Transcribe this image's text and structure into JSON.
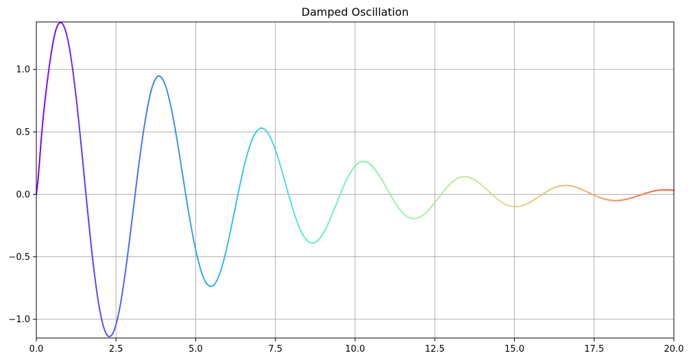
{
  "chart_data": {
    "type": "line",
    "title": "Damped Oscillation",
    "xlabel": "",
    "ylabel": "",
    "xlim": [
      0,
      20
    ],
    "ylim": [
      -1.15,
      1.38
    ],
    "grid": true,
    "colormap": "rainbow",
    "colors": [
      "#7f00ff",
      "#4a6cf0",
      "#2ab8e8",
      "#5ff0cc",
      "#9cf5a8",
      "#d8e08e",
      "#f6b074",
      "#ff5a38"
    ],
    "x_ticks": [
      0.0,
      2.5,
      5.0,
      7.5,
      10.0,
      12.5,
      15.0,
      17.5,
      20.0
    ],
    "x_tick_labels": [
      "0.0",
      "2.5",
      "5.0",
      "7.5",
      "10.0",
      "12.5",
      "15.0",
      "17.5",
      "20.0"
    ],
    "y_ticks": [
      -1.0,
      -0.5,
      0.0,
      0.5,
      1.0
    ],
    "y_tick_labels": [
      "−1.0",
      "−0.5",
      "0.0",
      "0.5",
      "1.0"
    ],
    "series": [
      {
        "x": [
          0,
          0.2,
          0.4,
          0.6,
          0.8,
          1.0,
          1.2,
          1.4,
          1.6,
          1.8,
          2.0,
          2.2,
          2.4,
          2.6,
          2.8,
          3.0,
          3.2,
          3.4,
          3.6,
          3.8,
          4.0,
          4.2,
          4.4,
          4.6,
          4.8,
          5.0,
          5.2,
          5.4,
          5.6,
          5.8,
          6.0,
          6.2,
          6.4,
          6.6,
          6.8,
          7.0,
          7.2,
          7.4,
          7.6,
          7.8,
          8.0,
          8.2,
          8.4,
          8.6,
          8.8,
          9.0,
          9.2,
          9.4,
          9.6,
          9.8,
          10.0,
          10.2,
          10.4,
          10.6,
          10.8,
          11.0,
          11.2,
          11.4,
          11.6,
          11.8,
          12.0,
          12.2,
          12.4,
          12.6,
          12.8,
          13.0,
          13.2,
          13.4,
          13.6,
          13.8,
          14.0,
          14.2,
          14.4,
          14.6,
          14.8,
          15.0,
          15.2,
          15.4,
          15.6,
          15.8,
          16.0,
          16.2,
          16.4,
          16.6,
          16.8,
          17.0,
          17.2,
          17.4,
          17.6,
          17.8,
          18.0,
          18.2,
          18.4,
          18.6,
          18.8,
          19.0,
          19.2,
          19.4,
          19.6,
          19.8,
          20.0
        ],
        "y": [
          0.0,
          0.578,
          1.012,
          1.306,
          1.372,
          1.223,
          0.882,
          0.411,
          -0.112,
          -0.589,
          -0.941,
          -1.12,
          -1.113,
          -0.932,
          -0.609,
          -0.208,
          0.207,
          0.567,
          0.829,
          0.944,
          0.903,
          0.729,
          0.457,
          0.139,
          -0.178,
          -0.445,
          -0.638,
          -0.73,
          -0.717,
          -0.6,
          -0.4,
          -0.157,
          0.09,
          0.305,
          0.456,
          0.526,
          0.512,
          0.423,
          0.277,
          0.101,
          -0.078,
          -0.233,
          -0.34,
          -0.388,
          -0.377,
          -0.313,
          -0.209,
          -0.085,
          0.042,
          0.151,
          0.227,
          0.262,
          0.254,
          0.207,
          0.133,
          0.045,
          -0.044,
          -0.12,
          -0.172,
          -0.194,
          -0.186,
          -0.153,
          -0.098,
          -0.034,
          0.032,
          0.088,
          0.126,
          0.141,
          0.134,
          0.108,
          0.069,
          0.022,
          -0.024,
          -0.063,
          -0.089,
          -0.099,
          -0.094,
          -0.075,
          -0.046,
          -0.013,
          0.02,
          0.048,
          0.065,
          0.071,
          0.066,
          0.05,
          0.029,
          0.005,
          -0.018,
          -0.036,
          -0.047,
          -0.05,
          -0.045,
          -0.034,
          -0.018,
          -0.001,
          0.015,
          0.028,
          0.035,
          0.036,
          0.032
        ]
      }
    ]
  }
}
